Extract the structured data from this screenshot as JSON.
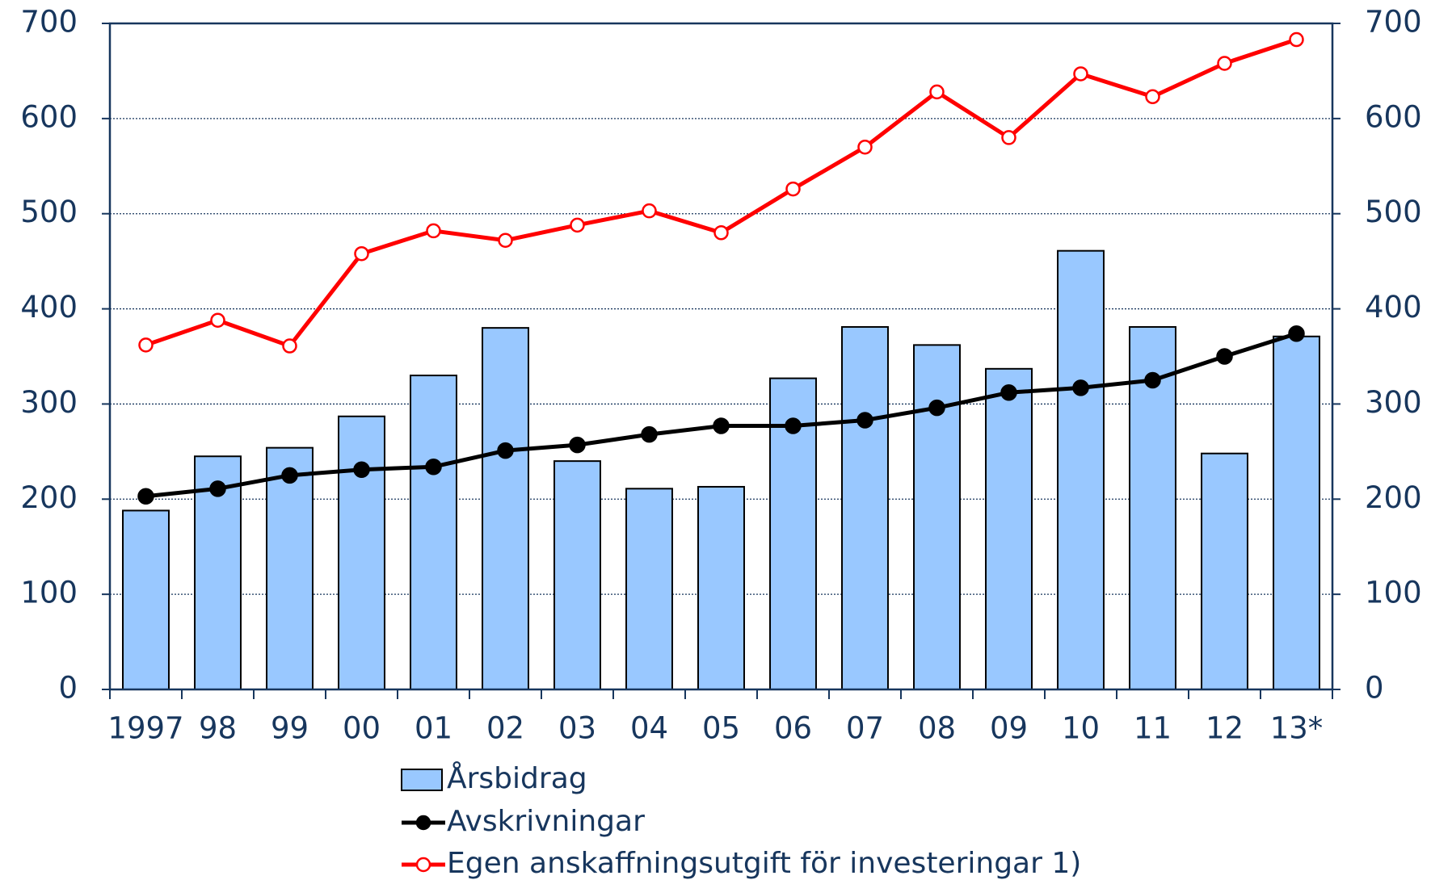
{
  "chart_data": {
    "type": "bar_line",
    "categories": [
      "1997",
      "98",
      "99",
      "00",
      "01",
      "02",
      "03",
      "04",
      "05",
      "06",
      "07",
      "08",
      "09",
      "10",
      "11",
      "12",
      "13*"
    ],
    "series": [
      {
        "name": "Årsbidrag",
        "type": "bar",
        "color": "#99c8ff",
        "values": [
          188,
          245,
          254,
          287,
          330,
          380,
          240,
          211,
          213,
          327,
          381,
          362,
          337,
          461,
          381,
          248,
          371
        ]
      },
      {
        "name": "Avskrivningar",
        "type": "line",
        "color": "#000000",
        "values": [
          203,
          211,
          225,
          231,
          234,
          251,
          257,
          268,
          277,
          277,
          283,
          296,
          312,
          317,
          325,
          350,
          374
        ]
      },
      {
        "name": "Egen anskaffningsutgift för investeringar 1)",
        "type": "line",
        "color": "#ff0000",
        "values": [
          362,
          388,
          361,
          458,
          482,
          472,
          488,
          503,
          480,
          526,
          570,
          628,
          580,
          647,
          623,
          658,
          683
        ]
      }
    ],
    "ylim": [
      0,
      700
    ],
    "yticks": [
      0,
      100,
      200,
      300,
      400,
      500,
      600,
      700
    ],
    "y2lim": [
      0,
      700
    ],
    "y2ticks": [
      0,
      100,
      200,
      300,
      400,
      500,
      600,
      700
    ],
    "grid": true
  }
}
